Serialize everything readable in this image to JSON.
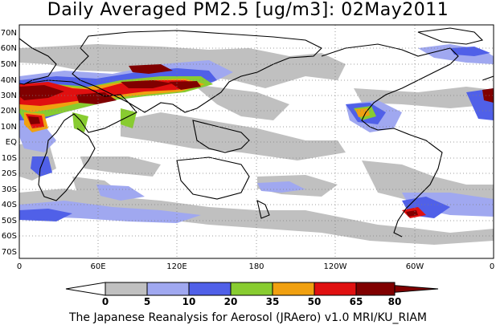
{
  "title": "Daily Averaged PM2.5 [ug/m3]: 02May2011",
  "footer": "The Japanese Reanalysis for Aerosol (JRAero) v1.0 MRI/KU_RIAM",
  "map": {
    "lat_labels": [
      "70N",
      "60N",
      "50N",
      "40N",
      "30N",
      "20N",
      "10N",
      "EQ",
      "10S",
      "20S",
      "30S",
      "40S",
      "50S",
      "60S",
      "70S"
    ],
    "lon_labels": [
      "0",
      "60E",
      "120E",
      "180",
      "120W",
      "60W",
      "0"
    ]
  },
  "colorbar": {
    "ticks": [
      "0",
      "5",
      "10",
      "20",
      "35",
      "50",
      "65",
      "80"
    ],
    "colors": [
      "#ffffff",
      "#c0c0c0",
      "#a0a8f0",
      "#5060e8",
      "#88cc30",
      "#f0a010",
      "#e01010",
      "#800000"
    ]
  },
  "colors": {
    "c5": "#c0c0c0",
    "c10": "#a0a8f0",
    "c20": "#5060e8",
    "c35": "#88cc30",
    "c50": "#f0a010",
    "c65": "#e01010",
    "c80": "#800000"
  }
}
